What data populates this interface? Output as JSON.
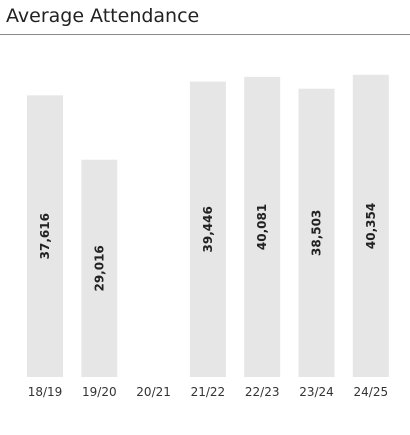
{
  "title": "Average Attendance",
  "colors": {
    "bar": "#e6e6e6",
    "bar_label": "#222222",
    "axis_label": "#333333",
    "rule": "#8a8a8a"
  },
  "chart_data": {
    "type": "bar",
    "title": "Average Attendance",
    "xlabel": "",
    "ylabel": "",
    "categories": [
      "18/19",
      "19/20",
      "20/21",
      "21/22",
      "22/23",
      "23/24",
      "24/25"
    ],
    "values": [
      37616,
      29016,
      null,
      39446,
      40081,
      38503,
      40354
    ],
    "value_labels": [
      "37,616",
      "29,016",
      "",
      "39,446",
      "40,081",
      "38,503",
      "40,354"
    ],
    "ylim": [
      0,
      41000
    ],
    "grid": false,
    "legend": "none",
    "data_labels": "inside-bar-rotated"
  }
}
